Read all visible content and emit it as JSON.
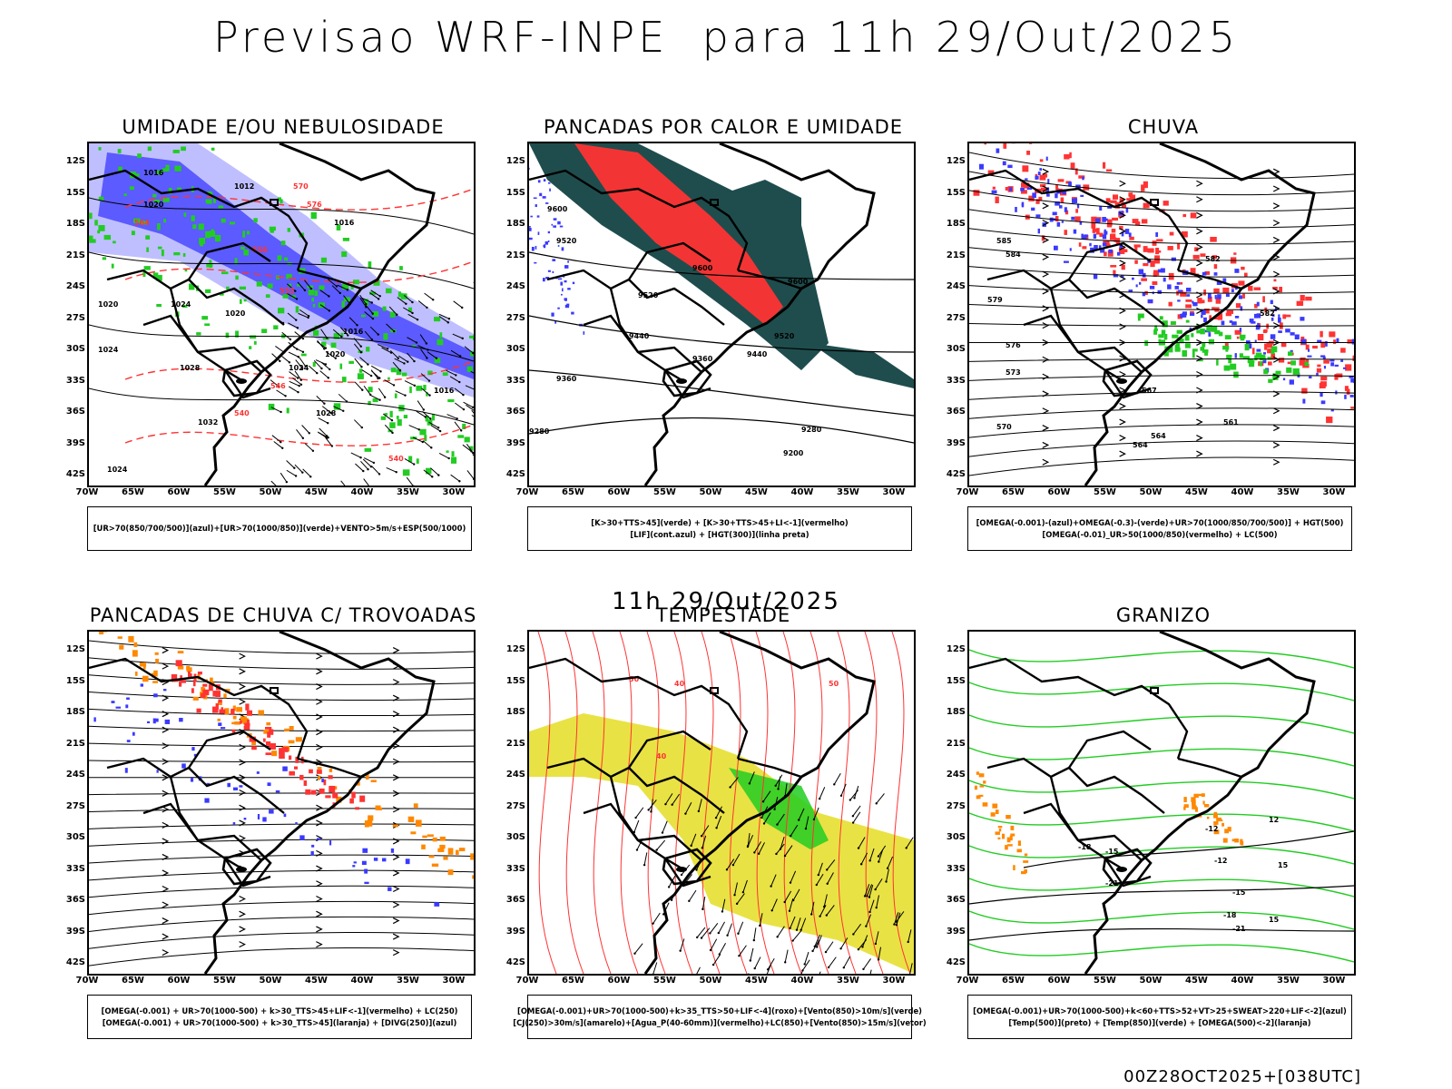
{
  "main_title": "Previsao WRF-INPE  para 11h 29/Out/2025",
  "mid_date": "11h 29/Out/2025",
  "footer": "00Z28OCT2025+[038UTC]",
  "axes": {
    "lat_labels": [
      "12S",
      "15S",
      "18S",
      "21S",
      "24S",
      "27S",
      "30S",
      "33S",
      "36S",
      "39S",
      "42S"
    ],
    "lon_labels": [
      "70W",
      "65W",
      "60W",
      "55W",
      "50W",
      "45W",
      "40W",
      "35W",
      "30W"
    ]
  },
  "colors": {
    "blue": "#3a3aff",
    "green": "#22cc22",
    "red": "#ff3333",
    "orange": "#ff8800",
    "yellow": "#e8e03a",
    "teal": "#1f4d4d",
    "lightblue": "#b8b8ff"
  },
  "panels": [
    {
      "title": "UMIDADE E/OU NEBULOSIDADE",
      "legend": [
        "[UR>70(850/700/500)](azul)+[UR>70(1000/850)](verde)+VENTO>5m/s+ESP(500/1000)"
      ],
      "contour_labels": [
        "1016",
        "1012",
        "1020",
        "1016",
        "1024",
        "1020",
        "1016",
        "1020",
        "1028",
        "1024",
        "1028",
        "1032",
        "1024",
        "1016",
        "1020",
        "1024",
        "570",
        "576",
        "564",
        "558",
        "552",
        "546",
        "540",
        "540"
      ]
    },
    {
      "title": "PANCADAS POR CALOR E UMIDADE",
      "legend": [
        "[K>30+TTS>45](verde) + [K>30+TTS>45+LI<-1](vermelho)",
        "[LIF](cont.azul) + [HGT(300)](linha preta)"
      ],
      "contour_labels": [
        "9600",
        "9520",
        "9600",
        "9600",
        "9520",
        "9440",
        "9520",
        "9440",
        "9360",
        "9360",
        "9280",
        "9280",
        "9200"
      ]
    },
    {
      "title": "CHUVA",
      "legend": [
        "[OMEGA(-0.001)-(azul)+OMEGA(-0.3)-(verde)+UR>70(1000/850/700/500)] + HGT(500)",
        "[OMEGA(-0.01)_UR>50(1000/850)(vermelho) + LC(500)"
      ],
      "contour_labels": [
        "582",
        "585",
        "579",
        "576",
        "573",
        "570",
        "567",
        "564",
        "561",
        "564",
        "582",
        "584"
      ]
    },
    {
      "title": "PANCADAS DE CHUVA C/ TROVOADAS",
      "legend": [
        "[OMEGA(-0.001) + UR>70(1000-500) + k>30_TTS>45+LIF<-1](vermelho) + LC(250)",
        "[OMEGA(-0.001) + UR>70(1000-500) + k>30_TTS>45](laranja) + [DIVG(250)](azul)"
      ],
      "contour_labels": []
    },
    {
      "title": "TEMPESTADE",
      "legend": [
        "[OMEGA(-0.001)+UR>70(1000-500)+k>35_TTS>50+LIF<-4](roxo)+[Vento(850)>10m/s](verde)",
        "[CJ(250)>30m/s](amarelo)+[Agua_P(40-60mm)](vermelho)+LC(850)+[Vento(850)>15m/s](vetor)"
      ],
      "contour_labels": [
        "50",
        "40",
        "40",
        "50"
      ]
    },
    {
      "title": "GRANIZO",
      "legend": [
        "[OMEGA(-0.001)+UR>70(1000-500)+k<60+TTS>52+VT>25+SWEAT>220+LIF<-2](azul)",
        "[Temp(500)](preto) + [Temp(850)](verde) + [OMEGA(500)<-2](laranja)"
      ],
      "contour_labels": [
        "-12",
        "-15",
        "-18",
        "-21",
        "-12",
        "-15",
        "-18",
        "-21",
        "15",
        "12",
        "15"
      ]
    }
  ]
}
